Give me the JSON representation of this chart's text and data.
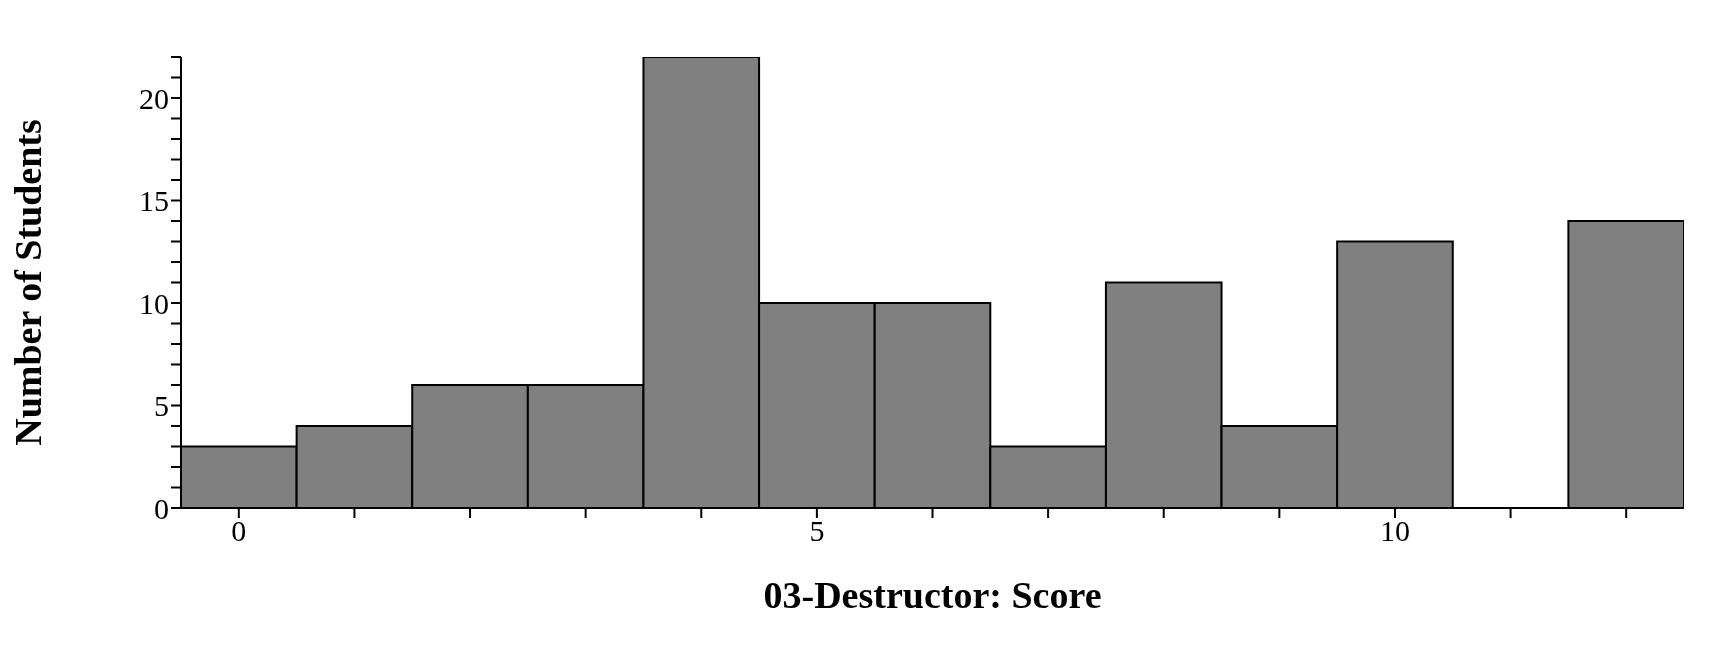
{
  "chart_data": {
    "type": "histogram",
    "xlabel": "03-Destructor: Score",
    "ylabel": "Number of Students",
    "bins": [
      -0.5,
      0.5,
      1.5,
      2.5,
      3.5,
      4.5,
      5.5,
      6.5,
      7.5,
      8.5,
      9.5,
      10.5,
      11.5,
      12.5
    ],
    "values": [
      3,
      4,
      6,
      6,
      22,
      10,
      10,
      3,
      11,
      4,
      13,
      0,
      14
    ],
    "color": "#808080",
    "xlim": [
      -0.5,
      12.5
    ],
    "xticks": [
      0,
      {
        "value": 1,
        "label": null
      },
      {
        "value": 2,
        "label": null
      },
      {
        "value": 3,
        "label": null
      },
      {
        "value": 4,
        "label": null
      },
      5,
      {
        "value": 6,
        "label": null
      },
      {
        "value": 7,
        "label": null
      },
      {
        "value": 8,
        "label": null
      },
      {
        "value": 9,
        "label": null
      },
      10,
      {
        "value": 11,
        "label": null
      },
      {
        "value": 12,
        "label": null
      }
    ],
    "ylim": [
      0,
      22
    ],
    "yticks": [
      0,
      {
        "value": 1,
        "label": null
      },
      {
        "value": 2,
        "label": null
      },
      {
        "value": 3,
        "label": null
      },
      {
        "value": 4,
        "label": null
      },
      5,
      {
        "value": 6,
        "label": null
      },
      {
        "value": 7,
        "label": null
      },
      {
        "value": 8,
        "label": null
      },
      {
        "value": 9,
        "label": null
      },
      10,
      {
        "value": 11,
        "label": null
      },
      {
        "value": 12,
        "label": null
      },
      {
        "value": 13,
        "label": null
      },
      {
        "value": 14,
        "label": null
      },
      15,
      {
        "value": 16,
        "label": null
      },
      {
        "value": 17,
        "label": null
      },
      {
        "value": 18,
        "label": null
      },
      {
        "value": 19,
        "label": null
      },
      20,
      {
        "value": 21,
        "label": null
      },
      {
        "value": 22,
        "label": null
      }
    ],
    "grid": false,
    "legend": false
  }
}
